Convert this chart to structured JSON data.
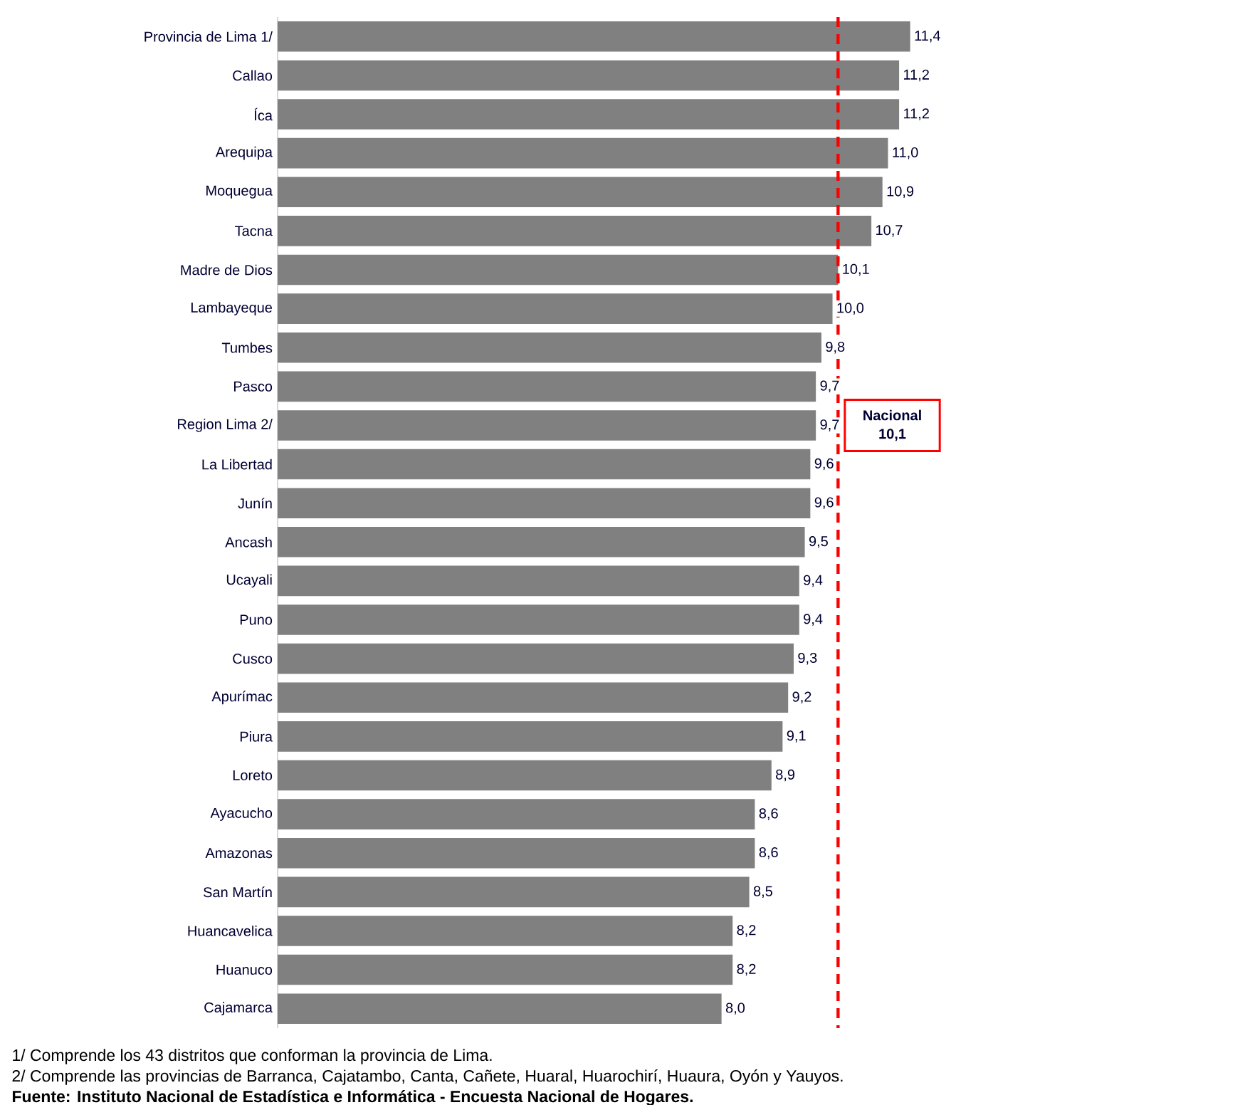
{
  "chart_data": {
    "type": "bar",
    "orientation": "horizontal",
    "color": "#808080",
    "categories": [
      "Provincia de Lima 1/",
      "Callao",
      "Íca",
      "Arequipa",
      "Moquegua",
      "Tacna",
      "Madre de Dios",
      "Lambayeque",
      "Tumbes",
      "Pasco",
      "Region Lima 2/",
      "La Libertad",
      "Junín",
      "Ancash",
      "Ucayali",
      "Puno",
      "Cusco",
      "Apurímac",
      "Piura",
      "Loreto",
      "Ayacucho",
      "Amazonas",
      "San Martín",
      "Huancavelica",
      "Huanuco",
      "Cajamarca"
    ],
    "values": [
      11.4,
      11.2,
      11.2,
      11.0,
      10.9,
      10.7,
      10.1,
      10.0,
      9.8,
      9.7,
      9.7,
      9.6,
      9.6,
      9.5,
      9.4,
      9.4,
      9.3,
      9.2,
      9.1,
      8.9,
      8.6,
      8.6,
      8.5,
      8.2,
      8.2,
      8.0
    ],
    "value_labels": [
      "11,4",
      "11,2",
      "11,2",
      "11,0",
      "10,9",
      "10,7",
      "10,1",
      "10,0",
      "9,8",
      "9,7",
      "9,7",
      "9,6",
      "9,6",
      "9,5",
      "9,4",
      "9,4",
      "9,3",
      "9,2",
      "9,1",
      "8,9",
      "8,6",
      "8,6",
      "8,5",
      "8,2",
      "8,2",
      "8,0"
    ],
    "ref_lines": [
      {
        "axis": "x",
        "value": 10.1,
        "label": "Nacional 10,1",
        "color": "#ff0000",
        "line_style": "dashed"
      }
    ],
    "annotations": [
      "1/ Comprende los 43 distritos que conforman la provincia de Lima.",
      "2/ Comprende las provincias de Barranca, Cajatambo, Canta, Cañete, Huaral, Huarochirí, Huaura, Oyón y Yauyos.",
      "Fuente: Instituto Nacional de Estadística e Informática - Encuesta Nacional  de Hogares."
    ],
    "tick_labels": "y"
  }
}
